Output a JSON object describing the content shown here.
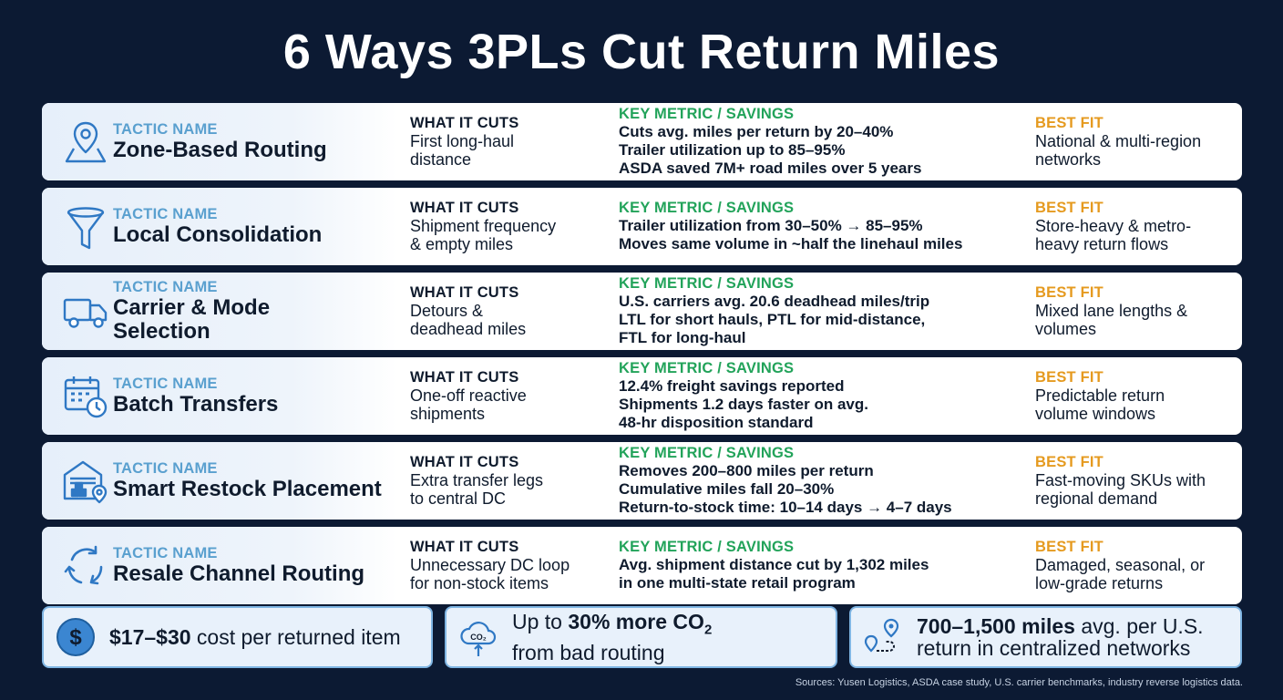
{
  "title": "6 Ways 3PLs Cut Return Miles",
  "labels": {
    "tactic": "TACTIC NAME",
    "cuts": "WHAT IT CUTS",
    "metric": "KEY METRIC / SAVINGS",
    "fit": "BEST FIT"
  },
  "rows": [
    {
      "icon": "map-pin-icon",
      "name": [
        "Zone-Based Routing"
      ],
      "cuts": [
        "First long-haul",
        "distance"
      ],
      "metric": [
        "Cuts avg. miles per return by 20–40%",
        "Trailer utilization up to 85–95%",
        "ASDA saved 7M+ road miles over 5 years"
      ],
      "fit": [
        "National & multi-region",
        "networks"
      ]
    },
    {
      "icon": "funnel-icon",
      "name": [
        "Local Consolidation"
      ],
      "cuts": [
        "Shipment frequency",
        "& empty miles"
      ],
      "metric": [
        "Trailer utilization from 30–50% → 85–95%",
        "Moves same volume in ~half the linehaul miles"
      ],
      "fit": [
        "Store-heavy & metro-",
        "heavy return flows"
      ]
    },
    {
      "icon": "truck-icon",
      "name": [
        "Carrier & Mode",
        "Selection"
      ],
      "cuts": [
        "Detours &",
        "deadhead miles"
      ],
      "metric": [
        "U.S. carriers avg. 20.6 deadhead miles/trip",
        "LTL for short hauls, PTL for mid-distance,",
        "FTL for long-haul"
      ],
      "fit": [
        "Mixed lane lengths &",
        "volumes"
      ]
    },
    {
      "icon": "calendar-clock-icon",
      "name": [
        "Batch Transfers"
      ],
      "cuts": [
        "One-off reactive",
        "shipments"
      ],
      "metric": [
        "12.4% freight savings reported",
        "Shipments 1.2 days faster on avg.",
        "48-hr disposition standard"
      ],
      "fit": [
        "Predictable return",
        "volume windows"
      ]
    },
    {
      "icon": "warehouse-pin-icon",
      "name": [
        "Smart Restock Placement"
      ],
      "cuts": [
        "Extra transfer legs",
        "to central DC"
      ],
      "metric": [
        "Removes 200–800 miles per return",
        "Cumulative miles fall 20–30%",
        "Return-to-stock time: 10–14 days → 4–7 days"
      ],
      "fit": [
        "Fast-moving SKUs with",
        "regional demand"
      ]
    },
    {
      "icon": "recycle-arrows-icon",
      "name": [
        "Resale Channel Routing"
      ],
      "cuts": [
        "Unnecessary DC loop",
        "for non-stock items"
      ],
      "metric": [
        "Avg. shipment distance cut by 1,302 miles",
        "in one multi-state retail program"
      ],
      "fit": [
        "Damaged, seasonal, or",
        "low-grade returns"
      ]
    }
  ],
  "stats": [
    {
      "icon": "dollar-coin-icon",
      "bold": "$17–$30",
      "rest": " cost per returned item"
    },
    {
      "icon": "co2-cloud-icon",
      "pre": "Up to ",
      "bold": "30% more CO",
      "sub": "2",
      "line2": "from bad routing"
    },
    {
      "icon": "route-pins-icon",
      "bold": "700–1,500 miles",
      "rest": " avg. per U.S.",
      "line2": "return in centralized networks"
    }
  ],
  "icon_texts": {
    "co2": "CO₂"
  },
  "sources": "Sources: Yusen Logistics, ASDA case study, U.S. carrier benchmarks, industry reverse logistics data.",
  "colors": {
    "background": "#0c1a33",
    "icon": "#2f78c4",
    "tactic_label": "#5aa0cf",
    "metric_label": "#22a35a",
    "fit_label": "#e59a1f",
    "stat_border": "#7fb5e3"
  }
}
